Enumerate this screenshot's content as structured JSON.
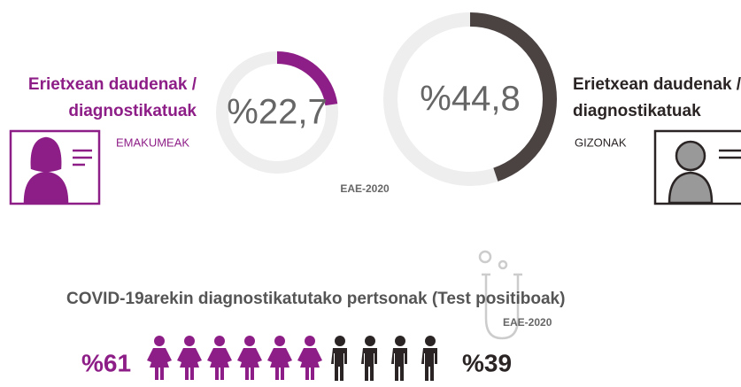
{
  "women": {
    "label_lines": [
      "Erietxean daudenak /",
      "diagnostikatuak"
    ],
    "group": "EMAKUMEAK",
    "value": 22.7,
    "value_label": "%22,7",
    "color": "#8e1e87"
  },
  "men": {
    "label_lines": [
      "Erietxean daudenak /",
      "diagnostikatuak"
    ],
    "group": "GIZONAK",
    "value": 44.8,
    "value_label": "%44,8",
    "color": "#4b4242"
  },
  "source_top": "EAE-2020",
  "covid": {
    "title": "COVID-19arekin diagnostikatutako pertsonak (Test positiboak)",
    "source": "EAE-2020",
    "women": {
      "value": 61,
      "value_label": "%61",
      "color": "#8e1e87"
    },
    "men": {
      "value": 39,
      "value_label": "%39",
      "color": "#2b2424"
    }
  }
}
